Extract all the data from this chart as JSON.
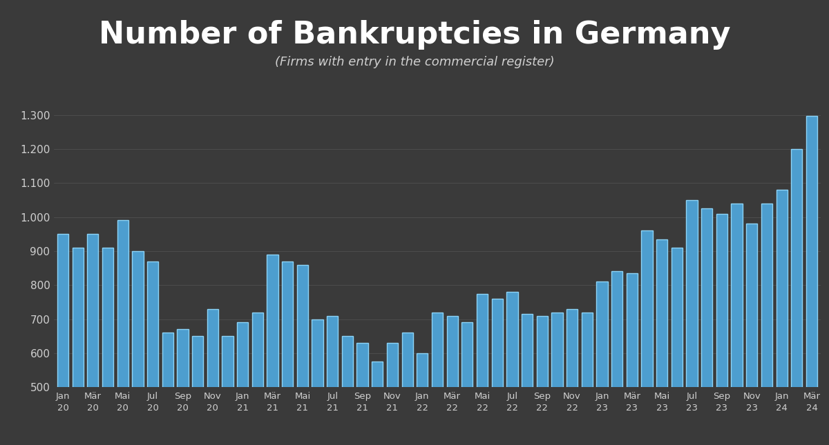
{
  "title": "Number of Bankruptcies in Germany",
  "subtitle": "(Firms with entry in the commercial register)",
  "background_color": "#3a3a3a",
  "plot_bg_color": "#3a3a3a",
  "bar_color": "#4d9ecf",
  "bar_edge_color": "#8dd4f7",
  "text_color": "#d0d0d0",
  "title_color": "#ffffff",
  "grid_color": "#666666",
  "ylim": [
    500,
    1350
  ],
  "yticks": [
    500,
    600,
    700,
    800,
    900,
    1000,
    1100,
    1200,
    1300
  ],
  "ytick_labels": [
    "500",
    "600",
    "700",
    "800",
    "900",
    "1.000",
    "1.100",
    "1.200",
    "1.300"
  ],
  "tick_labels_shown": [
    "Jan\n20",
    "",
    "Mär\n20",
    "",
    "Mai\n20",
    "",
    "Jul\n20",
    "",
    "Sep\n20",
    "",
    "Nov\n20",
    "",
    "Jan\n21",
    "",
    "Mär\n21",
    "",
    "Mai\n21",
    "",
    "Jul\n21",
    "",
    "Sep\n21",
    "",
    "Nov\n21",
    "",
    "Jan\n22",
    "",
    "Mär\n22",
    "",
    "Mai\n22",
    "",
    "Jul\n22",
    "",
    "Sep\n22",
    "",
    "Nov\n22",
    "",
    "Jan\n23",
    "",
    "Mär\n23",
    "",
    "Mai\n23",
    "",
    "Jul\n23",
    "",
    "Sep\n23",
    "",
    "Nov\n23",
    "",
    "Jan\n24",
    "",
    "Mär\n24"
  ],
  "values": [
    950,
    910,
    950,
    910,
    990,
    900,
    870,
    660,
    670,
    650,
    730,
    650,
    690,
    720,
    890,
    870,
    860,
    700,
    710,
    650,
    630,
    575,
    630,
    660,
    600,
    720,
    710,
    690,
    775,
    760,
    780,
    715,
    710,
    720,
    730,
    720,
    810,
    840,
    835,
    960,
    935,
    910,
    1050,
    1025,
    1010,
    1040,
    980,
    1040,
    1080,
    1200,
    1297
  ],
  "figsize": [
    12.0,
    6.45
  ],
  "dpi": 100,
  "title_fontsize": 32,
  "subtitle_fontsize": 13,
  "ytick_fontsize": 11,
  "xtick_fontsize": 9.5,
  "bar_width": 0.75,
  "bar_linewidth": 1.0
}
